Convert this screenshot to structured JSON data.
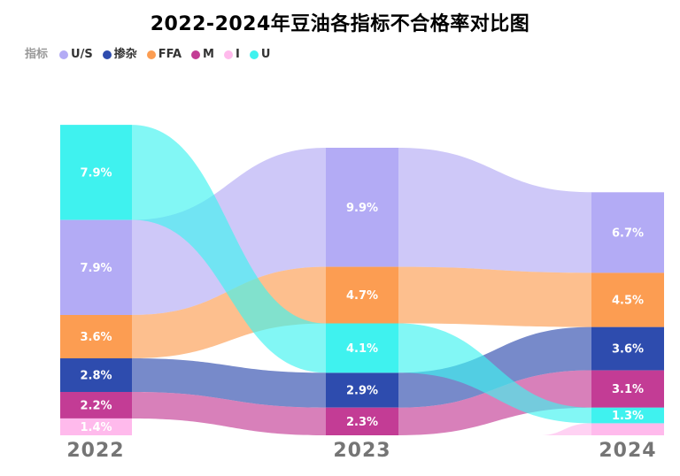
{
  "title": "2022-2024年豆油各指标不合格率对比图",
  "legend": {
    "title": "指标",
    "items": [
      {
        "id": "us",
        "label": "U/S",
        "color": "#b3abf5"
      },
      {
        "id": "impurity",
        "label": "掺杂",
        "color": "#2e4cae"
      },
      {
        "id": "ffa",
        "label": "FFA",
        "color": "#fc9d52"
      },
      {
        "id": "m",
        "label": "M",
        "color": "#c33c95"
      },
      {
        "id": "i",
        "label": "I",
        "color": "#ffbaec"
      },
      {
        "id": "u",
        "label": "U",
        "color": "#3ff2ef"
      }
    ]
  },
  "chart_data": {
    "type": "area",
    "subtype": "ranked-stream-alluvial",
    "title": "2022-2024年豆油各指标不合格率对比图",
    "unit": "%",
    "x": [
      "2022",
      "2023",
      "2024"
    ],
    "align": "bottom",
    "grid": false,
    "legend_position": "top-left",
    "label_color": "#ffffff",
    "series": [
      {
        "id": "us",
        "name": "U/S",
        "color": "#b3abf5",
        "values": [
          7.9,
          9.9,
          6.7
        ],
        "labels": [
          "7.9%",
          "9.9%",
          "6.7%"
        ]
      },
      {
        "id": "impurity",
        "name": "掺杂",
        "color": "#2e4cae",
        "values": [
          2.8,
          2.9,
          3.6
        ],
        "labels": [
          "2.8%",
          "2.9%",
          "3.6%"
        ]
      },
      {
        "id": "ffa",
        "name": "FFA",
        "color": "#fc9d52",
        "values": [
          3.6,
          4.7,
          4.5
        ],
        "labels": [
          "3.6%",
          "4.7%",
          "4.5%"
        ]
      },
      {
        "id": "m",
        "name": "M",
        "color": "#c33c95",
        "values": [
          2.2,
          2.3,
          3.1
        ],
        "labels": [
          "2.2%",
          "2.3%",
          "3.1%"
        ]
      },
      {
        "id": "i",
        "name": "I",
        "color": "#ffbaec",
        "values": [
          1.4,
          0,
          1.0
        ],
        "labels": [
          "1.4%",
          "",
          ""
        ]
      },
      {
        "id": "u",
        "name": "U",
        "color": "#3ff2ef",
        "values": [
          7.9,
          4.1,
          1.3
        ],
        "labels": [
          "7.9%",
          "4.1%",
          "1.3%"
        ]
      }
    ],
    "stack_order": [
      [
        "U",
        "U/S",
        "FFA",
        "掺杂",
        "M",
        "I"
      ],
      [
        "U/S",
        "FFA",
        "U",
        "掺杂",
        "M"
      ],
      [
        "U/S",
        "FFA",
        "掺杂",
        "M",
        "U",
        "I"
      ]
    ]
  }
}
